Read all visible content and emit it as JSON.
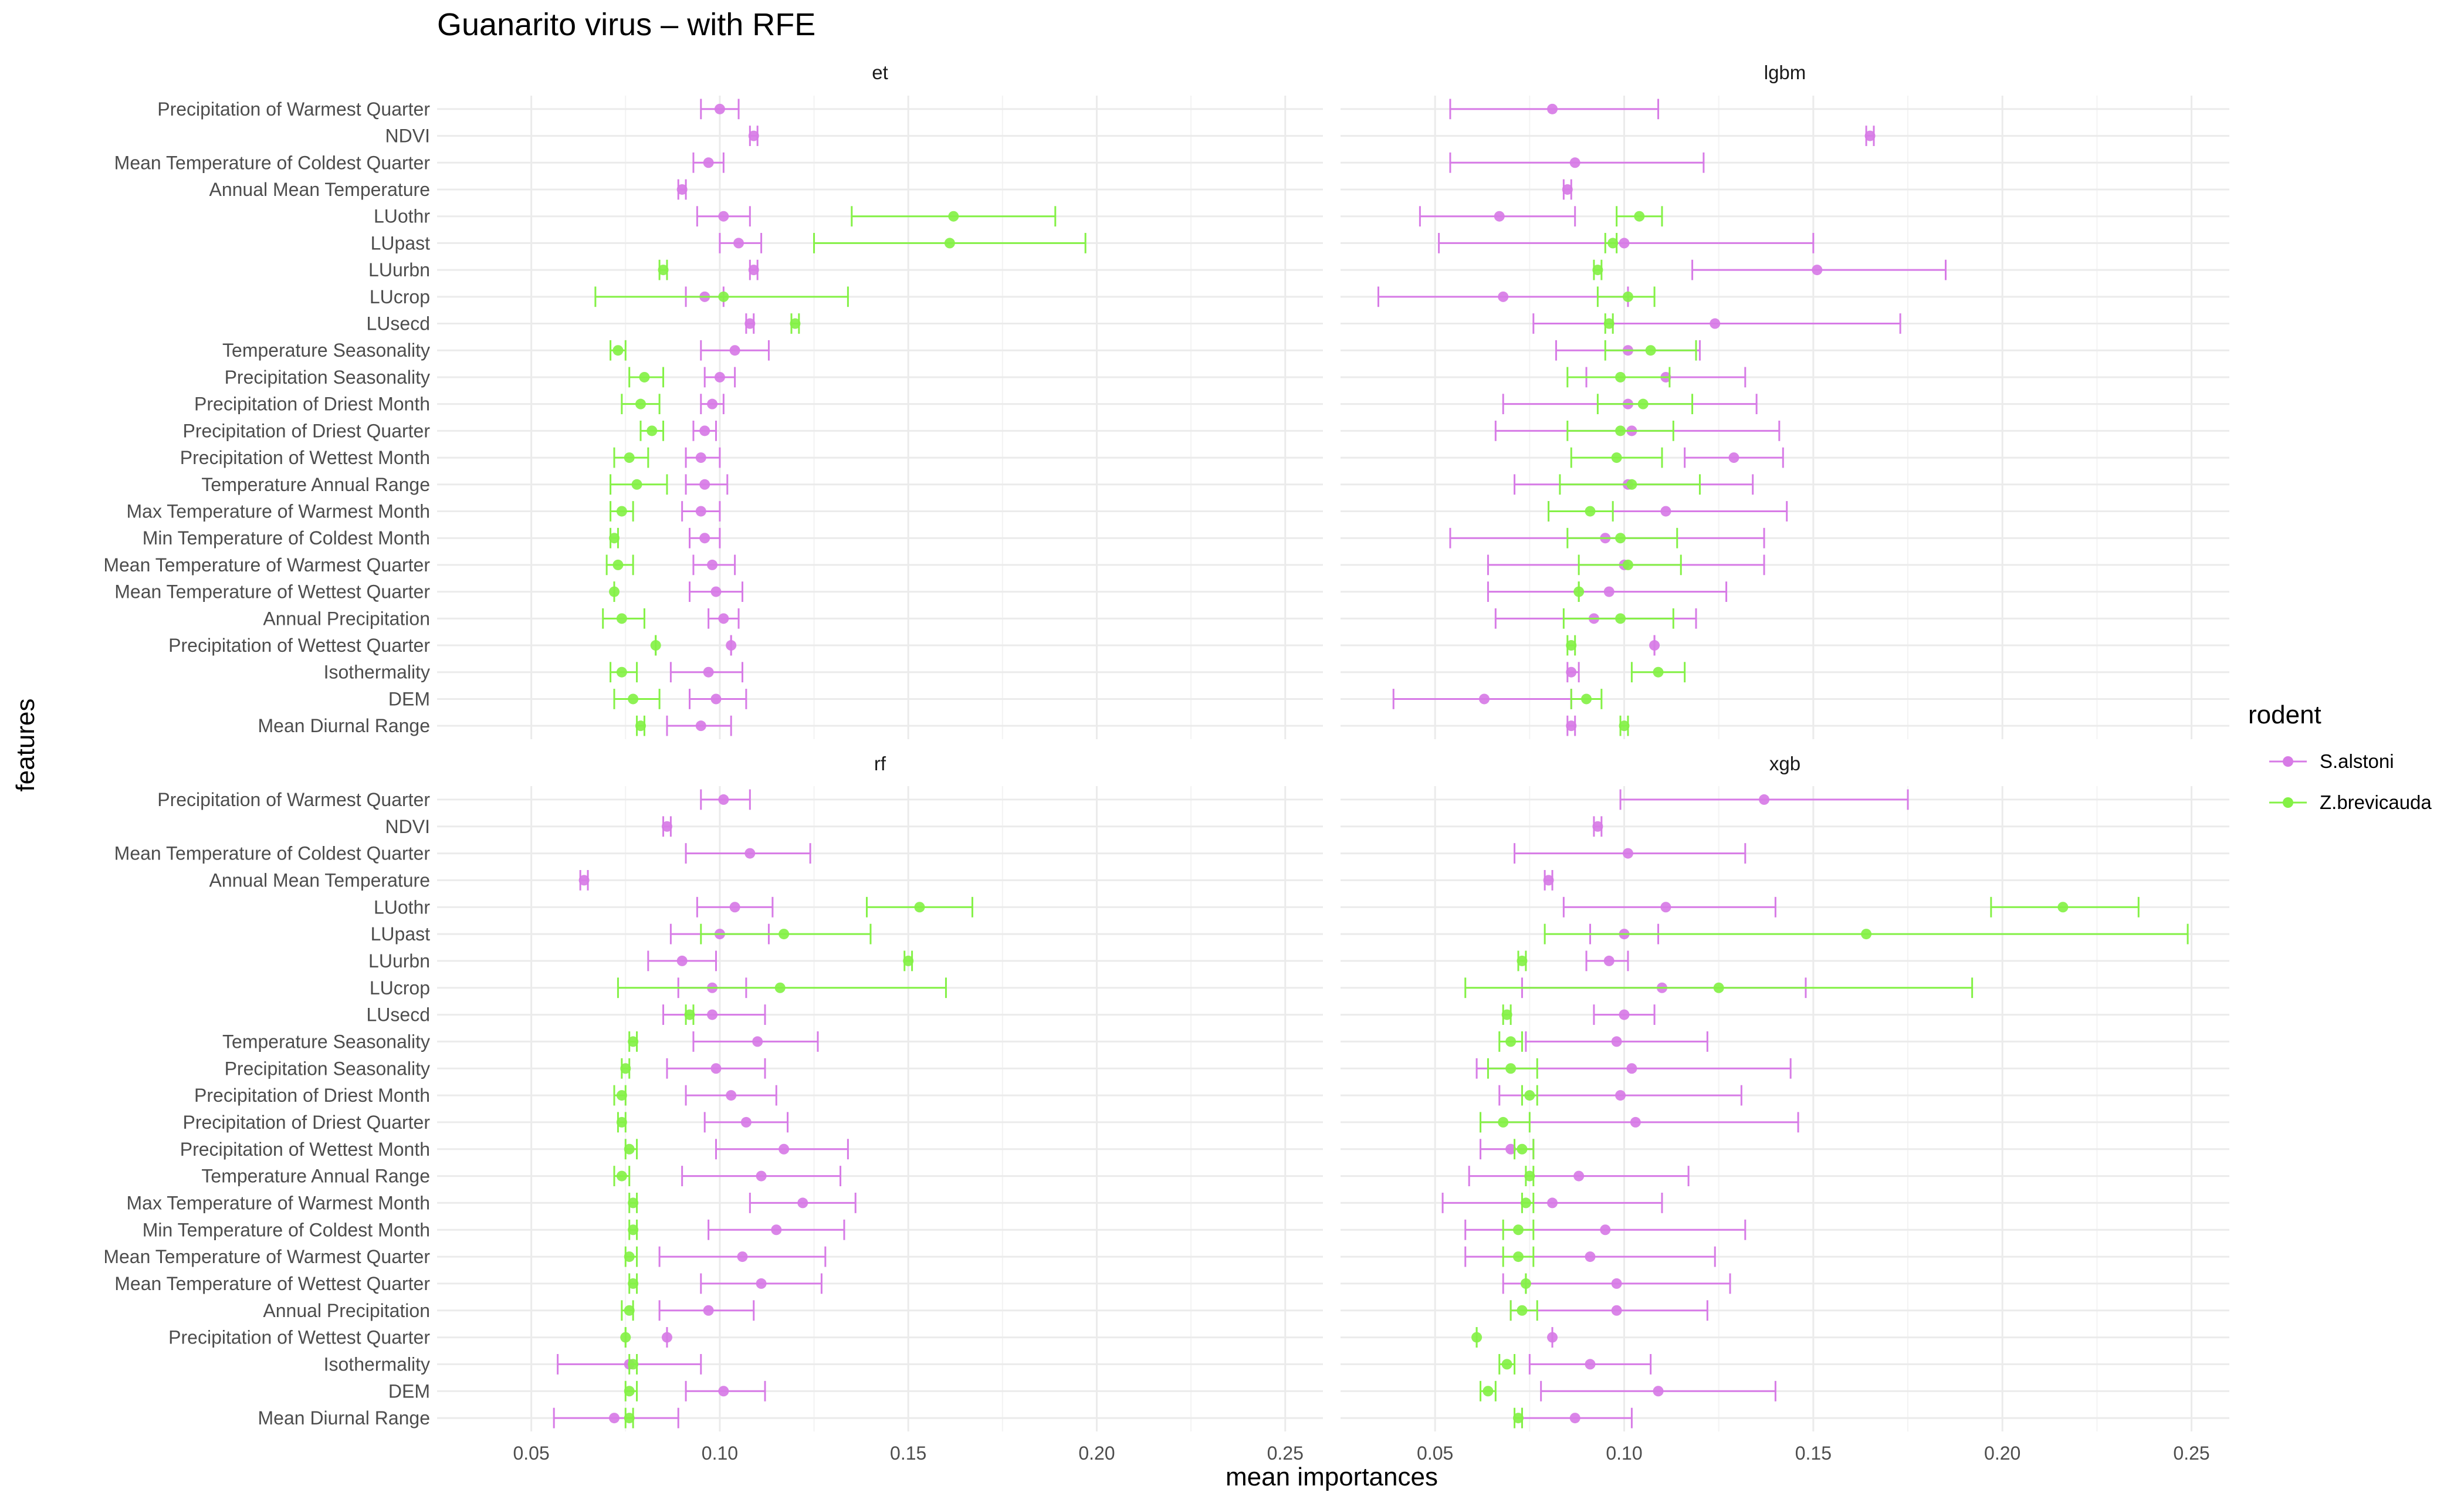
{
  "chart_data": {
    "type": "scatter",
    "title": "Guanarito virus – with RFE",
    "xlabel": "mean importances",
    "ylabel": "features",
    "xlim": [
      0.025,
      0.26
    ],
    "x_ticks": [
      0.05,
      0.1,
      0.15,
      0.2,
      0.25
    ],
    "x_tick_labels": [
      "0.05",
      "0.10",
      "0.15",
      "0.20",
      "0.25"
    ],
    "grid": true,
    "features": [
      "Precipitation of Warmest Quarter",
      "NDVI",
      "Mean Temperature of Coldest Quarter",
      "Annual Mean Temperature",
      "LUothr",
      "LUpast",
      "LUurbn",
      "LUcrop",
      "LUsecd",
      "Temperature Seasonality",
      "Precipitation Seasonality",
      "Precipitation of Driest Month",
      "Precipitation of Driest Quarter",
      "Precipitation of Wettest Month",
      "Temperature Annual Range",
      "Max Temperature of Warmest Month",
      "Min Temperature of Coldest Month",
      "Mean Temperature of Warmest Quarter",
      "Mean Temperature of Wettest Quarter",
      "Annual Precipitation",
      "Precipitation of Wettest Quarter",
      "Isothermality",
      "DEM",
      "Mean Diurnal Range"
    ],
    "legend": {
      "title": "rodent",
      "position": "right",
      "entries": [
        {
          "name": "S.alstoni",
          "color": "#d77be6"
        },
        {
          "name": "Z.brevicauda",
          "color": "#84f146"
        }
      ]
    },
    "panels": [
      {
        "name": "et",
        "series": [
          {
            "name": "S.alstoni",
            "mean": [
              0.1,
              0.109,
              0.097,
              0.09,
              0.101,
              0.105,
              0.109,
              0.096,
              0.108,
              0.104,
              0.1,
              0.098,
              0.096,
              0.095,
              0.096,
              0.095,
              0.096,
              0.098,
              0.099,
              0.101,
              0.103,
              0.097,
              0.099,
              0.095
            ],
            "lower": [
              0.095,
              0.108,
              0.093,
              0.089,
              0.094,
              0.1,
              0.108,
              0.091,
              0.107,
              0.095,
              0.096,
              0.095,
              0.093,
              0.091,
              0.091,
              0.09,
              0.092,
              0.093,
              0.092,
              0.097,
              0.103,
              0.087,
              0.092,
              0.086
            ],
            "upper": [
              0.105,
              0.11,
              0.101,
              0.091,
              0.108,
              0.111,
              0.11,
              0.101,
              0.109,
              0.113,
              0.104,
              0.101,
              0.099,
              0.1,
              0.102,
              0.1,
              0.1,
              0.104,
              0.106,
              0.105,
              0.103,
              0.106,
              0.107,
              0.103
            ]
          },
          {
            "name": "Z.brevicauda",
            "mean": [
              null,
              null,
              null,
              null,
              0.162,
              0.161,
              0.085,
              0.101,
              0.12,
              0.073,
              0.08,
              0.079,
              0.082,
              0.076,
              0.078,
              0.074,
              0.072,
              0.073,
              0.072,
              0.074,
              0.083,
              0.074,
              0.077,
              0.079
            ],
            "lower": [
              null,
              null,
              null,
              null,
              0.135,
              0.125,
              0.084,
              0.067,
              0.119,
              0.071,
              0.076,
              0.074,
              0.079,
              0.072,
              0.071,
              0.071,
              0.071,
              0.07,
              0.072,
              0.069,
              0.083,
              0.071,
              0.072,
              0.078
            ],
            "upper": [
              null,
              null,
              null,
              null,
              0.189,
              0.197,
              0.086,
              0.134,
              0.121,
              0.075,
              0.085,
              0.084,
              0.085,
              0.081,
              0.086,
              0.077,
              0.073,
              0.077,
              0.072,
              0.08,
              0.083,
              0.078,
              0.084,
              0.08
            ]
          }
        ]
      },
      {
        "name": "lgbm",
        "series": [
          {
            "name": "S.alstoni",
            "mean": [
              0.081,
              0.165,
              0.087,
              0.085,
              0.067,
              0.1,
              0.151,
              0.068,
              0.124,
              0.101,
              0.111,
              0.101,
              0.102,
              0.129,
              0.101,
              0.111,
              0.095,
              0.1,
              0.096,
              0.092,
              0.108,
              0.086,
              0.063,
              0.086
            ],
            "lower": [
              0.054,
              0.164,
              0.054,
              0.084,
              0.046,
              0.051,
              0.118,
              0.035,
              0.076,
              0.082,
              0.09,
              0.068,
              0.066,
              0.116,
              0.071,
              0.08,
              0.054,
              0.064,
              0.064,
              0.066,
              0.108,
              0.085,
              0.039,
              0.085
            ],
            "upper": [
              0.109,
              0.166,
              0.121,
              0.086,
              0.087,
              0.15,
              0.185,
              0.101,
              0.173,
              0.12,
              0.132,
              0.135,
              0.141,
              0.142,
              0.134,
              0.143,
              0.137,
              0.137,
              0.127,
              0.119,
              0.108,
              0.088,
              0.086,
              0.087
            ]
          },
          {
            "name": "Z.brevicauda",
            "mean": [
              null,
              null,
              null,
              null,
              0.104,
              0.097,
              0.093,
              0.101,
              0.096,
              0.107,
              0.099,
              0.105,
              0.099,
              0.098,
              0.102,
              0.091,
              0.099,
              0.101,
              0.088,
              0.099,
              0.086,
              0.109,
              0.09,
              0.1
            ],
            "lower": [
              null,
              null,
              null,
              null,
              0.098,
              0.095,
              0.092,
              0.093,
              0.095,
              0.095,
              0.085,
              0.093,
              0.085,
              0.086,
              0.083,
              0.08,
              0.085,
              0.088,
              0.088,
              0.084,
              0.085,
              0.102,
              0.086,
              0.099
            ],
            "upper": [
              null,
              null,
              null,
              null,
              0.11,
              0.098,
              0.094,
              0.108,
              0.097,
              0.119,
              0.112,
              0.118,
              0.113,
              0.11,
              0.12,
              0.097,
              0.114,
              0.115,
              0.088,
              0.113,
              0.087,
              0.116,
              0.094,
              0.101
            ]
          }
        ]
      },
      {
        "name": "rf",
        "series": [
          {
            "name": "S.alstoni",
            "mean": [
              0.101,
              0.086,
              0.108,
              0.064,
              0.104,
              0.1,
              0.09,
              0.098,
              0.098,
              0.11,
              0.099,
              0.103,
              0.107,
              0.117,
              0.111,
              0.122,
              0.115,
              0.106,
              0.111,
              0.097,
              0.086,
              0.076,
              0.101,
              0.072
            ],
            "lower": [
              0.095,
              0.085,
              0.091,
              0.063,
              0.094,
              0.087,
              0.081,
              0.089,
              0.085,
              0.093,
              0.086,
              0.091,
              0.096,
              0.099,
              0.09,
              0.108,
              0.097,
              0.084,
              0.095,
              0.084,
              0.086,
              0.057,
              0.091,
              0.056
            ],
            "upper": [
              0.108,
              0.087,
              0.124,
              0.065,
              0.114,
              0.113,
              0.099,
              0.107,
              0.112,
              0.126,
              0.112,
              0.115,
              0.118,
              0.134,
              0.132,
              0.136,
              0.133,
              0.128,
              0.127,
              0.109,
              0.086,
              0.095,
              0.112,
              0.089
            ]
          },
          {
            "name": "Z.brevicauda",
            "mean": [
              null,
              null,
              null,
              null,
              0.153,
              0.117,
              0.15,
              0.116,
              0.092,
              0.077,
              0.075,
              0.074,
              0.074,
              0.076,
              0.074,
              0.077,
              0.077,
              0.076,
              0.077,
              0.076,
              0.075,
              0.077,
              0.076,
              0.076
            ],
            "lower": [
              null,
              null,
              null,
              null,
              0.139,
              0.095,
              0.149,
              0.073,
              0.091,
              0.076,
              0.074,
              0.072,
              0.073,
              0.075,
              0.072,
              0.076,
              0.076,
              0.075,
              0.076,
              0.074,
              0.075,
              0.076,
              0.075,
              0.075
            ],
            "upper": [
              null,
              null,
              null,
              null,
              0.167,
              0.14,
              0.151,
              0.16,
              0.093,
              0.078,
              0.076,
              0.075,
              0.075,
              0.078,
              0.076,
              0.078,
              0.078,
              0.078,
              0.078,
              0.077,
              0.075,
              0.078,
              0.078,
              0.077
            ]
          }
        ]
      },
      {
        "name": "xgb",
        "series": [
          {
            "name": "S.alstoni",
            "mean": [
              0.137,
              0.093,
              0.101,
              0.08,
              0.111,
              0.1,
              0.096,
              0.11,
              0.1,
              0.098,
              0.102,
              0.099,
              0.103,
              0.07,
              0.088,
              0.081,
              0.095,
              0.091,
              0.098,
              0.098,
              0.081,
              0.091,
              0.109,
              0.087
            ],
            "lower": [
              0.099,
              0.092,
              0.071,
              0.079,
              0.084,
              0.091,
              0.09,
              0.073,
              0.092,
              0.074,
              0.061,
              0.067,
              0.062,
              0.062,
              0.059,
              0.052,
              0.058,
              0.058,
              0.068,
              0.07,
              0.081,
              0.075,
              0.078,
              0.073
            ],
            "upper": [
              0.175,
              0.094,
              0.132,
              0.081,
              0.14,
              0.109,
              0.101,
              0.148,
              0.108,
              0.122,
              0.144,
              0.131,
              0.146,
              0.076,
              0.117,
              0.11,
              0.132,
              0.124,
              0.128,
              0.122,
              0.081,
              0.107,
              0.14,
              0.102
            ]
          },
          {
            "name": "Z.brevicauda",
            "mean": [
              null,
              null,
              null,
              null,
              0.216,
              0.164,
              0.073,
              0.125,
              0.069,
              0.07,
              0.07,
              0.075,
              0.068,
              0.073,
              0.075,
              0.074,
              0.072,
              0.072,
              0.074,
              0.073,
              0.061,
              0.069,
              0.064,
              0.072
            ],
            "lower": [
              null,
              null,
              null,
              null,
              0.197,
              0.079,
              0.072,
              0.058,
              0.068,
              0.067,
              0.064,
              0.073,
              0.062,
              0.071,
              0.074,
              0.073,
              0.068,
              0.068,
              0.074,
              0.07,
              0.061,
              0.067,
              0.062,
              0.071
            ],
            "upper": [
              null,
              null,
              null,
              null,
              0.236,
              0.249,
              0.074,
              0.192,
              0.07,
              0.073,
              0.077,
              0.077,
              0.075,
              0.076,
              0.076,
              0.076,
              0.076,
              0.076,
              0.074,
              0.077,
              0.061,
              0.071,
              0.066,
              0.073
            ]
          }
        ]
      }
    ]
  }
}
